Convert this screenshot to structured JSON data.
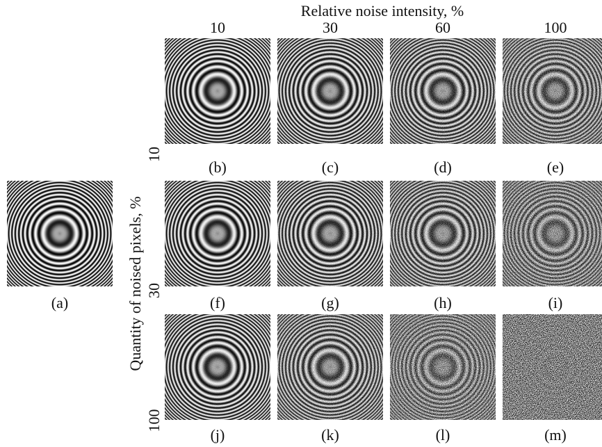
{
  "header": {
    "title": "Relative noise intensity, %",
    "columns": [
      10,
      30,
      60,
      100
    ]
  },
  "row_axis": {
    "title": "Quantity of noised pixels, %",
    "rows": [
      10,
      30,
      100
    ]
  },
  "reference": {
    "caption": "(a)"
  },
  "panels": [
    [
      "(b)",
      "(c)",
      "(d)",
      "(e)"
    ],
    [
      "(f)",
      "(g)",
      "(h)",
      "(i)"
    ],
    [
      "(j)",
      "(k)",
      "(l)",
      "(m)"
    ]
  ]
}
